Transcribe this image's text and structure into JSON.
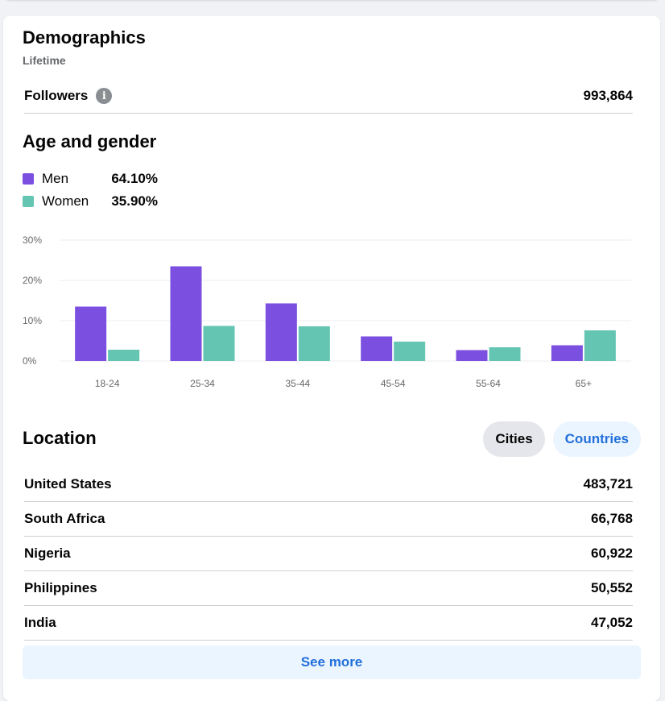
{
  "demographics": {
    "title": "Demographics",
    "subtitle": "Lifetime",
    "followers_label": "Followers",
    "followers_value": "993,864"
  },
  "age_gender": {
    "title": "Age and gender",
    "legend": [
      {
        "label": "Men",
        "value": "64.10%",
        "color": "#7b4fe0"
      },
      {
        "label": "Women",
        "value": "35.90%",
        "color": "#63c5b2"
      }
    ]
  },
  "chart_data": {
    "type": "bar",
    "categories": [
      "18-24",
      "25-34",
      "35-44",
      "45-54",
      "55-64",
      "65+"
    ],
    "series": [
      {
        "name": "Men",
        "values": [
          13.5,
          23.5,
          14.3,
          6.1,
          2.7,
          3.9
        ],
        "color": "#7b4fe0"
      },
      {
        "name": "Women",
        "values": [
          2.8,
          8.7,
          8.6,
          4.8,
          3.4,
          7.6
        ],
        "color": "#63c5b2"
      }
    ],
    "yticks": [
      "0%",
      "10%",
      "20%",
      "30%"
    ],
    "ylim": [
      0,
      30
    ],
    "grid": true
  },
  "location": {
    "title": "Location",
    "buttons": {
      "cities": "Cities",
      "countries": "Countries"
    },
    "rows": [
      {
        "name": "United States",
        "value": "483,721"
      },
      {
        "name": "South Africa",
        "value": "66,768"
      },
      {
        "name": "Nigeria",
        "value": "60,922"
      },
      {
        "name": "Philippines",
        "value": "50,552"
      },
      {
        "name": "India",
        "value": "47,052"
      }
    ],
    "see_more": "See more"
  }
}
